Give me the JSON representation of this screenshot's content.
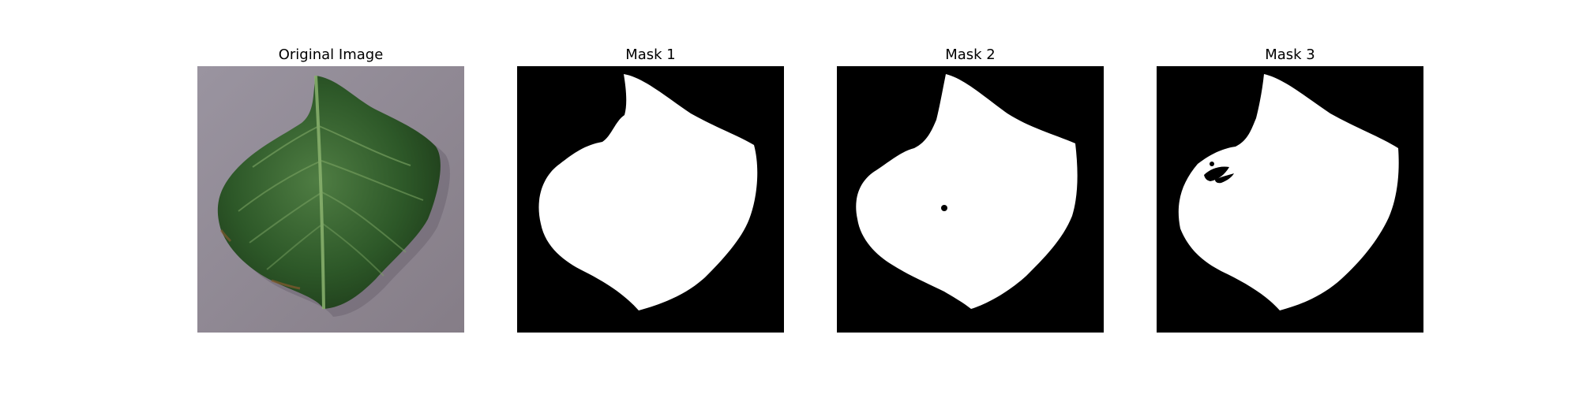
{
  "panels": [
    {
      "title": "Original Image"
    },
    {
      "title": "Mask 1"
    },
    {
      "title": "Mask 2"
    },
    {
      "title": "Mask 3"
    }
  ],
  "colors": {
    "background": "#ffffff",
    "mask_background": "#000000",
    "mask_foreground": "#ffffff",
    "leaf_green": "#2f5a2a",
    "leaf_dark": "#1f3f1d",
    "surface_gray": "#8f8790"
  }
}
